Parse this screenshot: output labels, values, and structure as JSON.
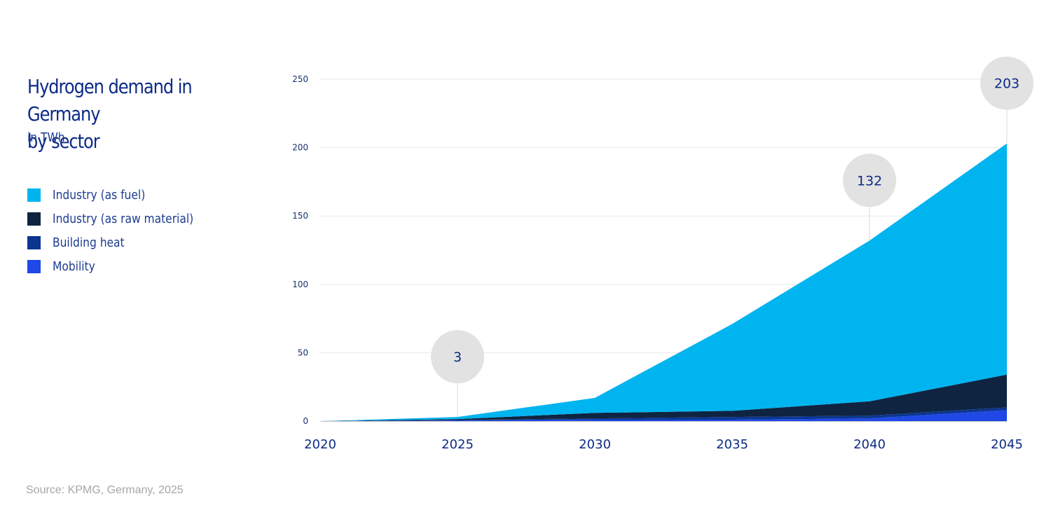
{
  "header": {
    "title_line1": "Hydrogen demand in Germany",
    "title_line2": "by sector",
    "subtitle": "in TWh"
  },
  "source": "Source: KPMG, Germany, 2025",
  "colors": {
    "industry_fuel": "#00b4f0",
    "industry_raw": "#0f2440",
    "building_heat": "#0b3591",
    "mobility": "#1f48e6",
    "grid": "#e8e8e8",
    "bubble": "#e2e2e2"
  },
  "chart_data": {
    "type": "area",
    "stacked": true,
    "title": "Hydrogen demand in Germany by sector",
    "subtitle": "in TWh",
    "x": [
      2020,
      2025,
      2030,
      2035,
      2040,
      2045
    ],
    "x_tick_labels": [
      "2020",
      "2025",
      "2030",
      "2035",
      "2040",
      "2045"
    ],
    "y_ticks": [
      0,
      50,
      100,
      150,
      200,
      250
    ],
    "y_tick_labels": [
      "0",
      "50",
      "100",
      "150",
      "200",
      "250"
    ],
    "ylim": [
      0,
      250
    ],
    "grid": true,
    "legend_position": "left",
    "series": [
      {
        "name": "Mobility",
        "values": [
          0,
          0.5,
          1,
          1,
          2,
          8
        ]
      },
      {
        "name": "Building heat",
        "values": [
          0,
          0.3,
          1,
          2,
          2,
          2
        ]
      },
      {
        "name": "Industry (as raw material)",
        "values": [
          0,
          0.7,
          4,
          4.5,
          10.5,
          24
        ]
      },
      {
        "name": "Industry (as fuel)",
        "values": [
          0,
          1.5,
          11,
          63.5,
          117.5,
          169
        ]
      }
    ],
    "annotations": [
      {
        "x": 2025,
        "value": 3,
        "label": "3"
      },
      {
        "x": 2040,
        "value": 132,
        "label": "132"
      },
      {
        "x": 2045,
        "value": 203,
        "label": "203"
      }
    ]
  },
  "legend": [
    {
      "name": "Industry (as fuel)",
      "color_key": "industry_fuel"
    },
    {
      "name": "Industry (as raw material)",
      "color_key": "industry_raw"
    },
    {
      "name": "Building heat",
      "color_key": "building_heat"
    },
    {
      "name": "Mobility",
      "color_key": "mobility"
    }
  ]
}
